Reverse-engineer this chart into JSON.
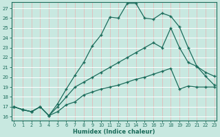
{
  "xlabel": "Humidex (Indice chaleur)",
  "bg_color": "#c8e8e0",
  "grid_color": "#b0d8d0",
  "line_color": "#1a6b5a",
  "xticks": [
    0,
    1,
    2,
    3,
    4,
    5,
    6,
    7,
    8,
    9,
    10,
    11,
    12,
    13,
    14,
    15,
    16,
    17,
    18,
    19,
    20,
    21,
    22,
    23
  ],
  "yticks": [
    16,
    17,
    18,
    19,
    20,
    21,
    22,
    23,
    24,
    25,
    26,
    27
  ],
  "xlim": [
    -0.3,
    23.3
  ],
  "ylim": [
    15.6,
    27.6
  ],
  "line1_x": [
    0,
    1,
    2,
    3,
    4,
    5,
    6,
    7,
    8,
    9,
    10,
    11,
    12,
    13,
    14,
    15,
    16,
    17,
    18,
    19,
    20,
    21,
    22,
    23
  ],
  "line1_y": [
    17.0,
    16.7,
    16.5,
    17.0,
    16.1,
    17.3,
    18.8,
    20.2,
    21.5,
    23.2,
    24.3,
    26.1,
    26.0,
    27.5,
    27.5,
    26.0,
    25.9,
    26.5,
    26.2,
    25.1,
    23.0,
    21.1,
    20.1,
    19.2
  ],
  "line2_x": [
    0,
    1,
    2,
    3,
    4,
    5,
    6,
    7,
    8,
    9,
    10,
    11,
    12,
    13,
    14,
    15,
    16,
    17,
    18,
    19,
    20,
    21,
    22,
    23
  ],
  "line2_y": [
    17.0,
    16.7,
    16.5,
    17.0,
    16.1,
    17.0,
    18.0,
    19.0,
    19.5,
    20.0,
    20.5,
    21.0,
    21.5,
    22.0,
    22.5,
    23.0,
    23.5,
    23.0,
    25.0,
    23.0,
    21.5,
    21.1,
    20.5,
    20.1
  ],
  "line3_x": [
    0,
    1,
    2,
    3,
    4,
    5,
    6,
    7,
    8,
    9,
    10,
    11,
    12,
    13,
    14,
    15,
    16,
    17,
    18,
    19,
    20,
    21,
    22,
    23
  ],
  "line3_y": [
    17.0,
    16.7,
    16.5,
    17.0,
    16.1,
    16.5,
    17.2,
    17.5,
    18.2,
    18.5,
    18.8,
    19.0,
    19.2,
    19.5,
    19.8,
    20.0,
    20.3,
    20.6,
    20.9,
    18.8,
    19.1,
    19.0,
    19.0,
    19.0
  ]
}
